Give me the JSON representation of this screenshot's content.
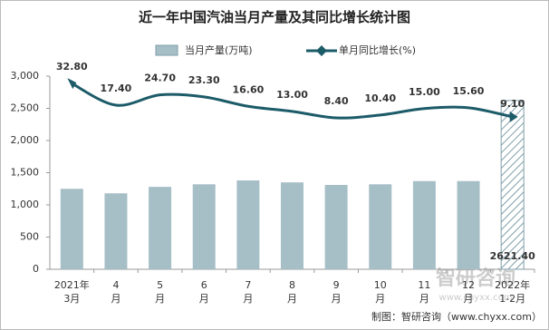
{
  "chart_data": {
    "type": "bar-line",
    "title": "近一年中国汽油当月产量及其同比增长统计图",
    "categories": [
      [
        "2021年",
        "3月"
      ],
      [
        "4",
        "月"
      ],
      [
        "5",
        "月"
      ],
      [
        "6",
        "月"
      ],
      [
        "7",
        "月"
      ],
      [
        "8",
        "月"
      ],
      [
        "9",
        "月"
      ],
      [
        "10",
        "月"
      ],
      [
        "11",
        "月"
      ],
      [
        "12",
        "月"
      ],
      [
        "2022年",
        "1-2月"
      ]
    ],
    "series": [
      {
        "name": "当月产量(万吨)",
        "type": "bar",
        "color": "#a6bfc7",
        "values": [
          1250,
          1180,
          1280,
          1320,
          1380,
          1350,
          1310,
          1320,
          1370,
          1370,
          2621.4
        ],
        "value_labels": [
          null,
          null,
          null,
          null,
          null,
          null,
          null,
          null,
          null,
          null,
          "2621.40"
        ],
        "styles": [
          "solid",
          "solid",
          "solid",
          "solid",
          "solid",
          "solid",
          "solid",
          "solid",
          "solid",
          "solid",
          "hatch"
        ]
      },
      {
        "name": "单月同比增长(%)",
        "type": "line",
        "axis": "y2",
        "color": "#1c5b68",
        "values": [
          32.8,
          17.4,
          24.7,
          23.3,
          16.6,
          13.0,
          8.4,
          10.4,
          15.0,
          15.6,
          9.1
        ],
        "value_labels": [
          "32.80",
          "17.40",
          "24.70",
          "23.30",
          "16.60",
          "13.00",
          "8.40",
          "10.40",
          "15.00",
          "15.60",
          "9.10"
        ]
      }
    ],
    "ylim": [
      0,
      3000
    ],
    "yticks": [
      0,
      {
        "value": 500,
        "label": "500"
      },
      {
        "value": 1000,
        "label": "1,000"
      },
      {
        "value": 1500,
        "label": "1,500"
      },
      {
        "value": 2000,
        "label": "2,000"
      },
      {
        "value": 2500,
        "label": "2,500"
      },
      {
        "value": 3000,
        "label": "3,000"
      }
    ],
    "y2lim": [
      -99,
      38
    ],
    "grid": false,
    "source": "制图：智研咨询（www.chyxx.com）",
    "watermark": "智研咨询",
    "watermark_url": "www.chyxx.com"
  }
}
